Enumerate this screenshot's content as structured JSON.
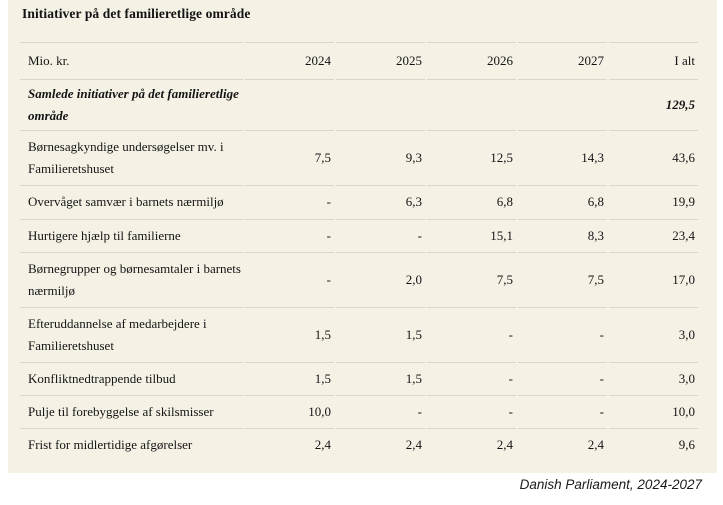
{
  "title": "Initiativer på det familieretlige område",
  "table": {
    "unit_header": "Mio. kr.",
    "year_headers": [
      "2024",
      "2025",
      "2026",
      "2027",
      "I alt"
    ],
    "summary_row": {
      "label": "Samlede initiativer på det familieretlige område",
      "values": [
        "",
        "",
        "",
        "",
        "129,5"
      ]
    },
    "rows": [
      {
        "label": "Børnesagkyndige undersøgelser mv. i Familieretshuset",
        "values": [
          "7,5",
          "9,3",
          "12,5",
          "14,3",
          "43,6"
        ]
      },
      {
        "label": "Overvåget samvær i barnets nærmiljø",
        "values": [
          "-",
          "6,3",
          "6,8",
          "6,8",
          "19,9"
        ]
      },
      {
        "label": "Hurtigere hjælp til familierne",
        "values": [
          "-",
          "-",
          "15,1",
          "8,3",
          "23,4"
        ]
      },
      {
        "label": "Børnegrupper og børnesamtaler i barnets nærmiljø",
        "values": [
          "-",
          "2,0",
          "7,5",
          "7,5",
          "17,0"
        ]
      },
      {
        "label": "Efteruddannelse af medarbejdere i Familieretshuset",
        "values": [
          "1,5",
          "1,5",
          "-",
          "-",
          "3,0"
        ]
      },
      {
        "label": "Konfliktnedtrappende tilbud",
        "values": [
          "1,5",
          "1,5",
          "-",
          "-",
          "3,0"
        ]
      },
      {
        "label": "Pulje til forebyggelse af skilsmisser",
        "values": [
          "10,0",
          "-",
          "-",
          "-",
          "10,0"
        ]
      },
      {
        "label": "Frist for midlertidige afgørelser",
        "values": [
          "2,4",
          "2,4",
          "2,4",
          "2,4",
          "9,6"
        ]
      }
    ]
  },
  "footer": {
    "source": "Danish Parliament, 2024-2027"
  },
  "colors": {
    "page_background": "#ffffff",
    "panel_background": "#f5f2e5",
    "divider": "#dad7c9",
    "text": "#141414"
  }
}
